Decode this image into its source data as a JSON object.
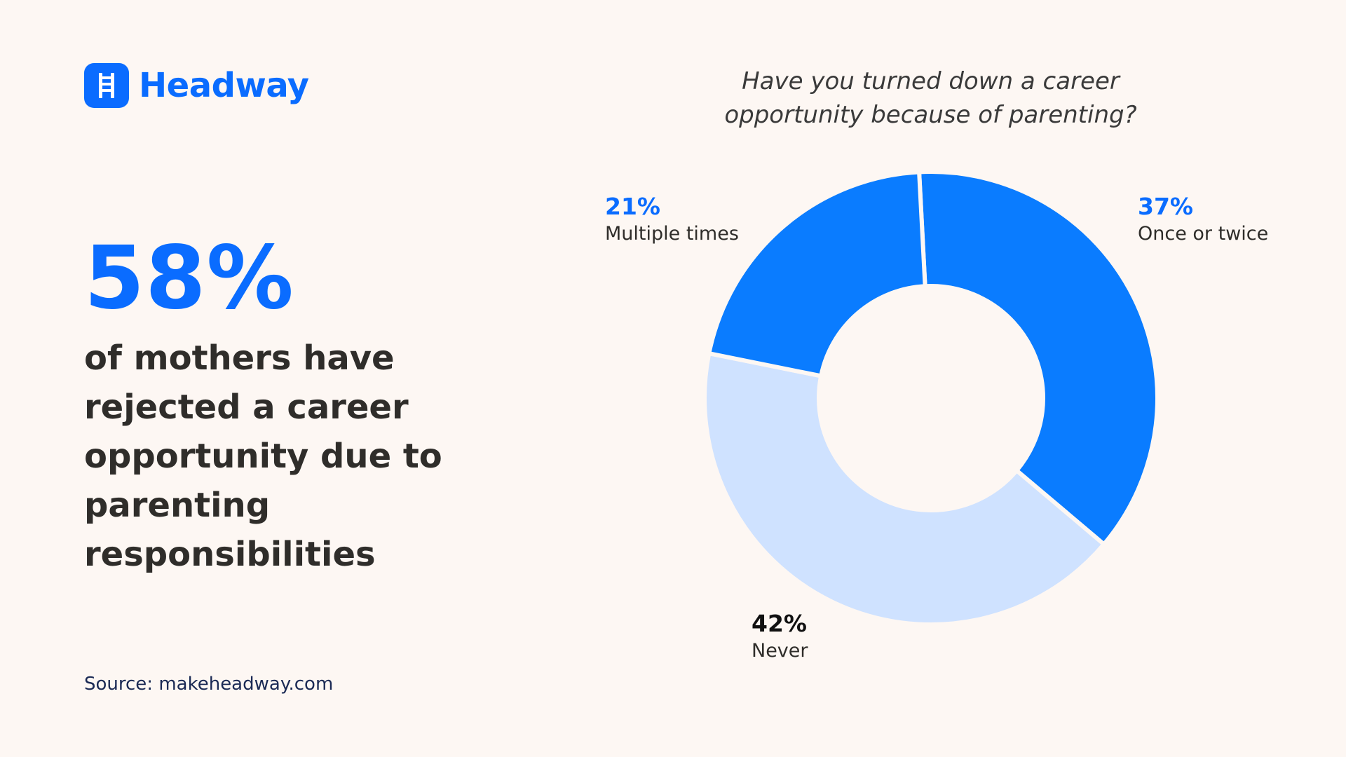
{
  "brand": {
    "name": "Headway",
    "logo_icon": "ladder-icon",
    "color": "#0a6cff"
  },
  "headline": {
    "number": "58%",
    "text": "of mothers have rejected a career opportunity due to parenting responsibilities"
  },
  "source": "Source: makeheadway.com",
  "colors": {
    "background": "#fdf7f3",
    "accent": "#0a6cff",
    "light": "#cfe2ff",
    "text": "#2f2d2a"
  },
  "chart_data": {
    "type": "pie",
    "donut": true,
    "title": "Have you turned down a career opportunity because of parenting?",
    "slices": [
      {
        "label": "Once or twice",
        "value": 37,
        "value_label": "37%",
        "color": "#0a7cff"
      },
      {
        "label": "Never",
        "value": 42,
        "value_label": "42%",
        "color": "#cfe2ff"
      },
      {
        "label": "Multiple times",
        "value": 21,
        "value_label": "21%",
        "color": "#0a7cff"
      }
    ]
  }
}
